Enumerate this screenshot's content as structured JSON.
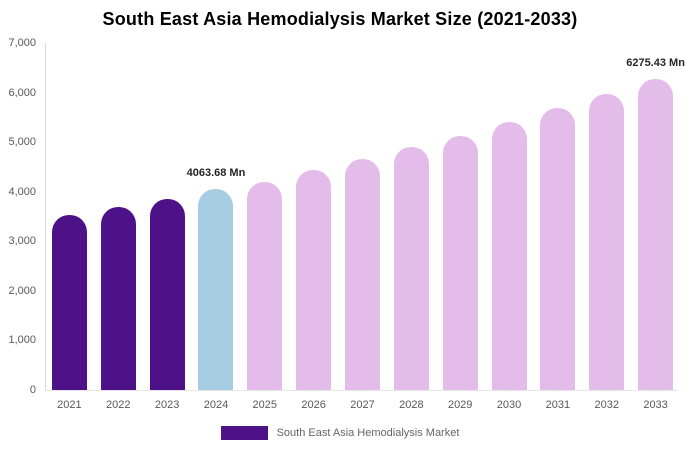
{
  "title": "South East Asia Hemodialysis Market Size (2021-2033)",
  "colors": {
    "historical_bar": "#4D1287",
    "base_year_bar": "#A6CDE2",
    "forecast_bar": "#E4BCE9",
    "axis_line": "#d9d9d9",
    "tick_text": "#595959",
    "legend_text": "#666666",
    "label_text": "#262626"
  },
  "chart_data": {
    "type": "bar",
    "title": "South East Asia Hemodialysis Market Size (2021-2033)",
    "xlabel": "",
    "ylabel": "",
    "unit": "Mn",
    "ylim": [
      0,
      7000
    ],
    "ytick_values": [
      0,
      1000,
      2000,
      3000,
      4000,
      5000,
      6000,
      7000
    ],
    "ytick_labels": [
      "0",
      "1,000",
      "2,000",
      "3,000",
      "4,000",
      "5,000",
      "6,000",
      "7,000"
    ],
    "grid": false,
    "legend_position": "bottom-center",
    "categories": [
      "2021",
      "2022",
      "2023",
      "2024",
      "2025",
      "2026",
      "2027",
      "2028",
      "2029",
      "2030",
      "2031",
      "2032",
      "2033"
    ],
    "values": [
      3540,
      3690,
      3850,
      4063.68,
      4200,
      4440,
      4660,
      4900,
      5120,
      5400,
      5680,
      5980,
      6275.43
    ],
    "segments": [
      "historical",
      "historical",
      "historical",
      "base",
      "forecast",
      "forecast",
      "forecast",
      "forecast",
      "forecast",
      "forecast",
      "forecast",
      "forecast",
      "forecast"
    ],
    "point_labels": {
      "2024": "4063.68 Mn",
      "2033": "6275.43 Mn"
    },
    "legend": [
      {
        "label": "South East Asia Hemodialysis Market",
        "color": "#4D1287"
      }
    ]
  }
}
